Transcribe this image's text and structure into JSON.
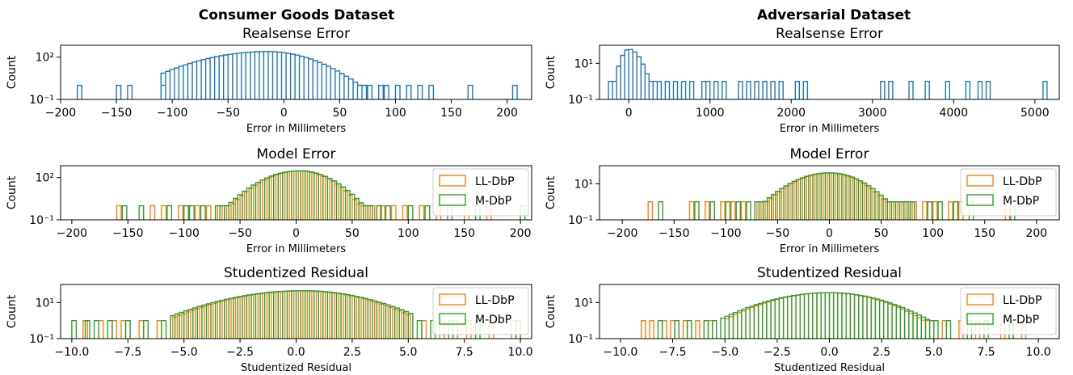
{
  "colors": {
    "realsense": "#1f77b4",
    "ll_dbp": "#ff7f0e",
    "m_dbp": "#2ca02c",
    "axis": "#000000"
  },
  "columns": [
    {
      "title": "Consumer Goods Dataset"
    },
    {
      "title": "Adversarial Dataset"
    }
  ],
  "chart_data": [
    {
      "type": "step-histogram",
      "dataset": "Consumer Goods Dataset",
      "title": "Realsense Error",
      "xlabel": "Error in Millimeters",
      "ylabel": "Count",
      "yscale": "log",
      "xlim": [
        -200,
        222
      ],
      "ylim": [
        0.1,
        700
      ],
      "xticks": [
        -200,
        -150,
        -100,
        -50,
        0,
        50,
        100,
        150,
        200
      ],
      "yticks": [
        {
          "value": 0.1,
          "label": "10⁻¹"
        },
        {
          "value": 100,
          "label": "10²"
        }
      ],
      "legend": "none",
      "series": [
        {
          "name": "",
          "color_key": "realsense",
          "peak": -15,
          "mode": 250,
          "left_width": 35,
          "right_width": 25,
          "core": [
            -110,
            72
          ],
          "bin": 4,
          "outliers": [
            -185,
            -150,
            -140,
            -110,
            75,
            85,
            90,
            100,
            110,
            120,
            130,
            165,
            205
          ]
        }
      ]
    },
    {
      "type": "step-histogram",
      "dataset": "Consumer Goods Dataset",
      "title": "Model Error",
      "xlabel": "Error in Millimeters",
      "ylabel": "Count",
      "yscale": "log",
      "xlim": [
        -210,
        210
      ],
      "ylim": [
        0.1,
        700
      ],
      "xticks": [
        -200,
        -150,
        -100,
        -50,
        0,
        50,
        100,
        150,
        200
      ],
      "yticks": [
        {
          "value": 0.1,
          "label": "10⁻¹"
        },
        {
          "value": 100,
          "label": "10²"
        }
      ],
      "legend": "right",
      "series": [
        {
          "name": "LL-DbP",
          "color_key": "ll_dbp",
          "peak": 3,
          "mode": 300,
          "left_width": 18,
          "right_width": 16,
          "core": [
            -70,
            70
          ],
          "bin": 4,
          "outliers": [
            -160,
            -130,
            -120,
            -105,
            -90,
            -80,
            75,
            85,
            95,
            110,
            125,
            150,
            170
          ]
        },
        {
          "name": "M-DbP",
          "color_key": "m_dbp",
          "peak": 3,
          "mode": 300,
          "left_width": 19,
          "right_width": 17,
          "core": [
            -72,
            68
          ],
          "bin": 4,
          "outliers": [
            -155,
            -140,
            -115,
            -100,
            -95,
            -85,
            72,
            80,
            100,
            115,
            135,
            160,
            200
          ]
        }
      ]
    },
    {
      "type": "step-histogram",
      "dataset": "Consumer Goods Dataset",
      "title": "Studentized Residual",
      "xlabel": "Studentized Residual",
      "ylabel": "Count",
      "yscale": "log",
      "xlim": [
        -10.5,
        10.5
      ],
      "ylim": [
        0.1,
        100
      ],
      "xticks": [
        -10.0,
        -7.5,
        -5.0,
        -2.5,
        0.0,
        2.5,
        5.0,
        7.5,
        10.0
      ],
      "yticks": [
        {
          "value": 0.1,
          "label": "10⁻¹"
        },
        {
          "value": 10,
          "label": "10¹"
        }
      ],
      "legend": "right",
      "series": [
        {
          "name": "LL-DbP",
          "color_key": "ll_dbp",
          "peak": 0.3,
          "mode": 45,
          "left_width": 2.2,
          "right_width": 1.9,
          "core": [
            -5.5,
            5.0
          ],
          "bin": 0.2,
          "outliers": [
            -9.5,
            -8.8,
            -8.2,
            -7.8,
            -7.0,
            -6.2,
            5.6,
            6.4,
            7.0,
            7.6,
            8.6,
            9.6
          ]
        },
        {
          "name": "M-DbP",
          "color_key": "m_dbp",
          "peak": 0.3,
          "mode": 45,
          "left_width": 2.3,
          "right_width": 2.0,
          "core": [
            -5.6,
            5.1
          ],
          "bin": 0.2,
          "outliers": [
            -10.0,
            -9.4,
            -9.0,
            -8.4,
            -7.6,
            -6.8,
            -6.0,
            5.4,
            6.0,
            6.8,
            8.0,
            9.8
          ]
        }
      ]
    },
    {
      "type": "step-histogram",
      "dataset": "Adversarial Dataset",
      "title": "Realsense Error",
      "xlabel": "Error in Millimeters",
      "ylabel": "Count",
      "yscale": "log",
      "xlim": [
        -360,
        5300
      ],
      "ylim": [
        0.1,
        100
      ],
      "xticks": [
        0,
        1000,
        2000,
        3000,
        4000,
        5000
      ],
      "yticks": [
        {
          "value": 0.1,
          "label": "10⁻¹"
        },
        {
          "value": 10,
          "label": "10¹"
        }
      ],
      "legend": "none",
      "series": [
        {
          "name": "",
          "color_key": "realsense",
          "peak": 0,
          "mode": 60,
          "left_width": 60,
          "right_width": 90,
          "core": [
            -250,
            400
          ],
          "bin": 50,
          "outliers": [
            -250,
            450,
            550,
            650,
            750,
            900,
            950,
            1050,
            1150,
            1350,
            1450,
            1550,
            1650,
            1750,
            1850,
            2050,
            2150,
            3100,
            3200,
            3450,
            3650,
            3900,
            4150,
            4300,
            4400,
            5100
          ]
        }
      ]
    },
    {
      "type": "step-histogram",
      "dataset": "Adversarial Dataset",
      "title": "Model Error",
      "xlabel": "Error in Millimeters",
      "ylabel": "Count",
      "yscale": "log",
      "xlim": [
        -222,
        222
      ],
      "ylim": [
        0.1,
        100
      ],
      "xticks": [
        -200,
        -150,
        -100,
        -50,
        0,
        50,
        100,
        150,
        200
      ],
      "yticks": [
        {
          "value": 0.1,
          "label": "10⁻¹"
        },
        {
          "value": 10,
          "label": "10¹"
        }
      ],
      "legend": "right",
      "series": [
        {
          "name": "LL-DbP",
          "color_key": "ll_dbp",
          "peak": 0,
          "mode": 40,
          "left_width": 22,
          "right_width": 20,
          "core": [
            -70,
            75
          ],
          "bin": 4,
          "outliers": [
            -175,
            -135,
            -120,
            -105,
            -95,
            -85,
            80,
            90,
            100,
            115,
            125,
            170
          ]
        },
        {
          "name": "M-DbP",
          "color_key": "m_dbp",
          "peak": 0,
          "mode": 40,
          "left_width": 23,
          "right_width": 21,
          "core": [
            -72,
            76
          ],
          "bin": 4,
          "outliers": [
            -165,
            -130,
            -115,
            -100,
            -90,
            -80,
            78,
            95,
            105,
            120,
            135,
            175
          ]
        }
      ]
    },
    {
      "type": "step-histogram",
      "dataset": "Adversarial Dataset",
      "title": "Studentized Residual",
      "xlabel": "Studentized Residual",
      "ylabel": "Count",
      "yscale": "log",
      "xlim": [
        -11,
        11
      ],
      "ylim": [
        0.1,
        100
      ],
      "xticks": [
        -10.0,
        -7.5,
        -5.0,
        -2.5,
        0.0,
        2.5,
        5.0,
        7.5,
        10.0
      ],
      "yticks": [
        {
          "value": 0.1,
          "label": "10⁻¹"
        },
        {
          "value": 10,
          "label": "10¹"
        }
      ],
      "legend": "right",
      "series": [
        {
          "name": "LL-DbP",
          "color_key": "ll_dbp",
          "peak": 0,
          "mode": 35,
          "left_width": 1.9,
          "right_width": 1.7,
          "core": [
            -5.0,
            5.0
          ],
          "bin": 0.2,
          "outliers": [
            -9.0,
            -8.6,
            -8.0,
            -7.6,
            -7.0,
            -6.4,
            -5.8,
            5.4,
            6.2,
            7.0,
            8.2,
            9.2
          ]
        },
        {
          "name": "M-DbP",
          "color_key": "m_dbp",
          "peak": 0,
          "mode": 35,
          "left_width": 2.0,
          "right_width": 1.8,
          "core": [
            -5.2,
            5.2
          ],
          "bin": 0.2,
          "outliers": [
            -8.2,
            -7.4,
            -6.8,
            -6.0,
            -5.6,
            5.6,
            6.6,
            7.4,
            8.6
          ]
        }
      ]
    }
  ]
}
